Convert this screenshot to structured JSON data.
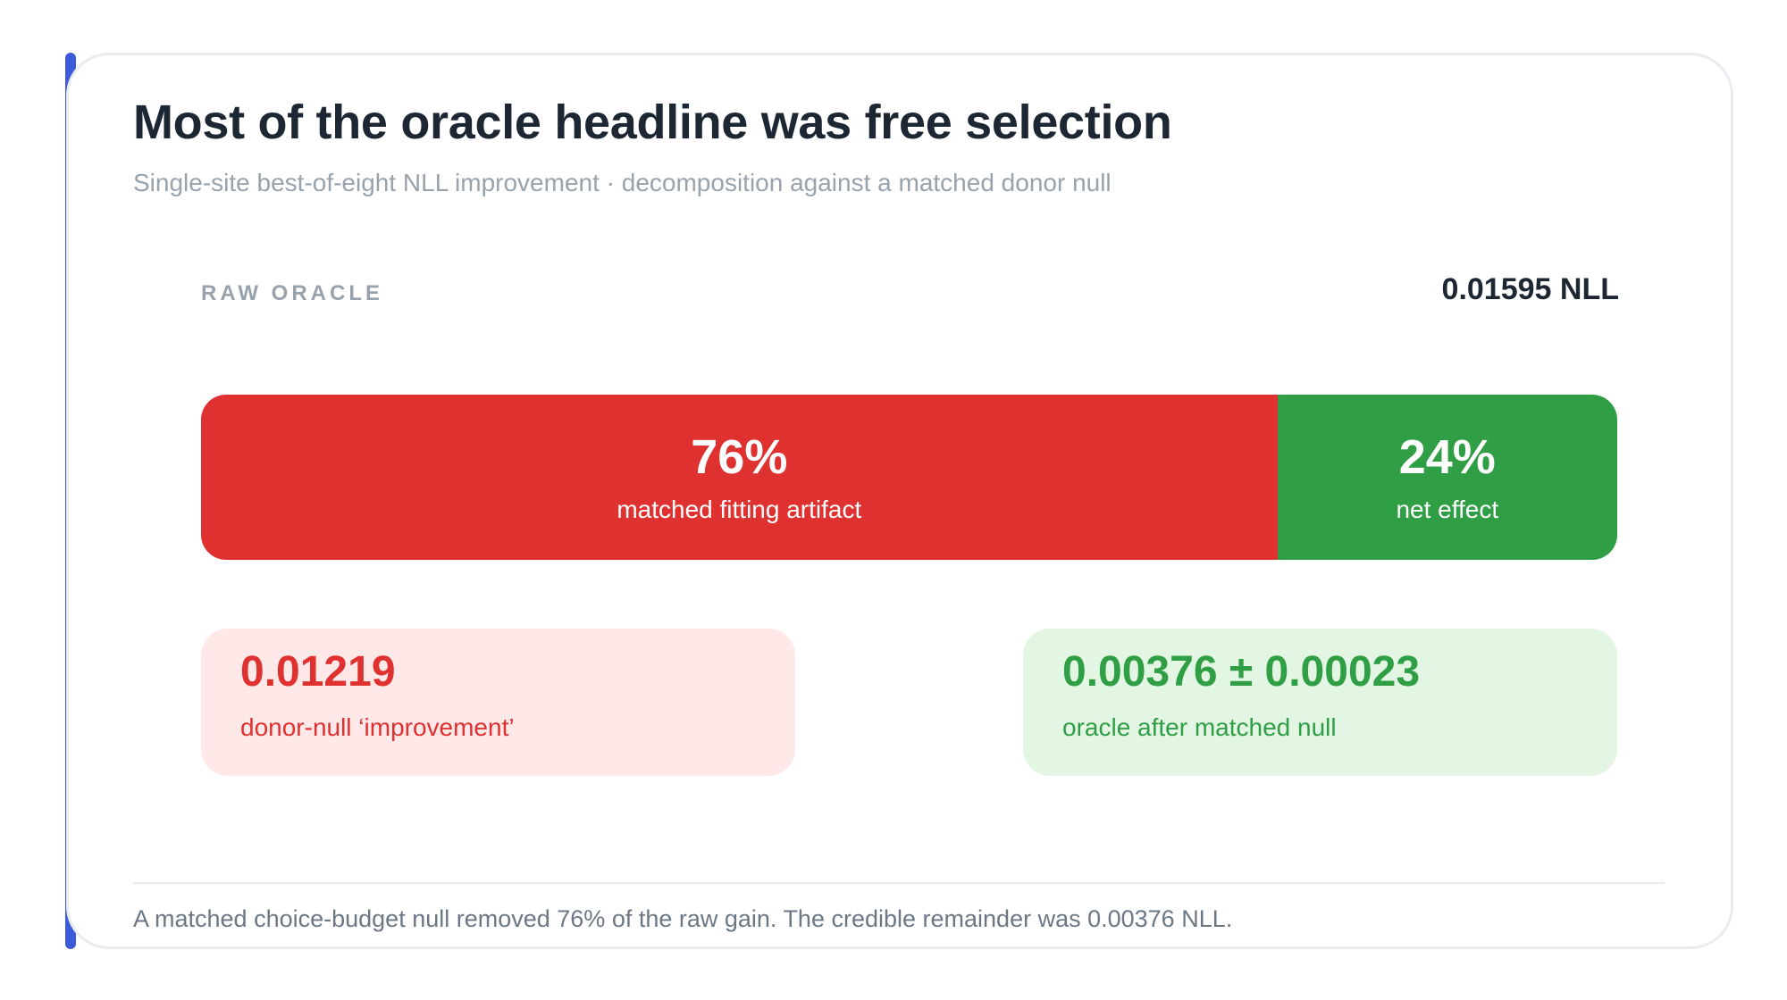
{
  "header": {
    "title": "Most of the oracle headline was free selection",
    "subtitle": "Single-site best-of-eight NLL improvement · decomposition against a matched donor null"
  },
  "raw": {
    "label": "RAW ORACLE",
    "value": "0.01595 NLL"
  },
  "decomposition": {
    "segments": [
      {
        "percent_text": "76%",
        "label": "matched fitting artifact",
        "share": 0.76,
        "color": "#e03131"
      },
      {
        "percent_text": "24%",
        "label": "net effect",
        "share": 0.24,
        "color": "#2f9e44"
      }
    ]
  },
  "stats": {
    "null": {
      "value": "0.01219",
      "label": "donor-null ‘improvement’"
    },
    "net": {
      "value": "0.00376 ± 0.00023",
      "label": "oracle after matched null"
    }
  },
  "footnote": "A matched choice-budget null removed 76% of the raw gain. The credible remainder was 0.00376 NLL.",
  "colors": {
    "accent": "#3b5bdb",
    "artifact": "#e03131",
    "net": "#2f9e44",
    "artifact_bg": "#ffe8e8",
    "net_bg": "#e3f6e3"
  }
}
